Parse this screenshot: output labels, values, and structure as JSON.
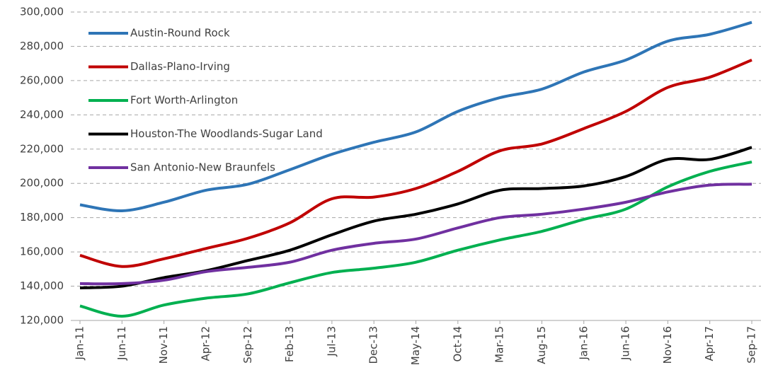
{
  "chart_data": {
    "type": "line",
    "categories": [
      "Jan-11",
      "Jun-11",
      "Nov-11",
      "Apr-12",
      "Sep-12",
      "Feb-13",
      "Jul-13",
      "Dec-13",
      "May-14",
      "Oct-14",
      "Mar-15",
      "Aug-15",
      "Jan-16",
      "Jun-16",
      "Nov-16",
      "Apr-17",
      "Sep-17"
    ],
    "series": [
      {
        "name": "Austin-Round Rock",
        "color": "#2e75b6",
        "values": [
          187500,
          184000,
          189000,
          196000,
          199500,
          208000,
          217000,
          224000,
          230000,
          242000,
          250000,
          255000,
          265000,
          272000,
          283000,
          287000,
          294000
        ]
      },
      {
        "name": "Dallas-Plano-Irving",
        "color": "#c00000",
        "values": [
          158000,
          151500,
          156000,
          162000,
          168000,
          177000,
          191000,
          192000,
          197000,
          207000,
          219000,
          223000,
          232000,
          242000,
          256000,
          262000,
          272000
        ]
      },
      {
        "name": "Fort Worth-Arlington",
        "color": "#00b050",
        "values": [
          128500,
          122500,
          129000,
          133000,
          135500,
          142000,
          148000,
          150500,
          154000,
          161000,
          167000,
          172000,
          179000,
          185000,
          198000,
          207000,
          212500
        ]
      },
      {
        "name": "Houston-The Woodlands-Sugar Land",
        "color": "#000000",
        "values": [
          139000,
          140000,
          145000,
          149000,
          155000,
          161000,
          170000,
          178000,
          182000,
          188000,
          196000,
          197000,
          198500,
          204000,
          214000,
          214000,
          221000
        ]
      },
      {
        "name": "San Antonio-New Braunfels",
        "color": "#7030a0",
        "values": [
          141500,
          141500,
          143500,
          148500,
          151000,
          154000,
          161000,
          165000,
          167500,
          174000,
          180000,
          182000,
          185000,
          189000,
          195000,
          199000,
          199500
        ]
      }
    ],
    "ylim": [
      120000,
      300000
    ],
    "yticks": [
      {
        "value": 120000,
        "label": "120,000"
      },
      {
        "value": 140000,
        "label": "140,000"
      },
      {
        "value": 160000,
        "label": "160,000"
      },
      {
        "value": 180000,
        "label": "180,000"
      },
      {
        "value": 200000,
        "label": "200,000"
      },
      {
        "value": 220000,
        "label": "220,000"
      },
      {
        "value": 240000,
        "label": "240,000"
      },
      {
        "value": 260000,
        "label": "260,000"
      },
      {
        "value": 280000,
        "label": "280,000"
      },
      {
        "value": 300000,
        "label": "300,000"
      }
    ],
    "grid": true,
    "legend": "upper left"
  }
}
